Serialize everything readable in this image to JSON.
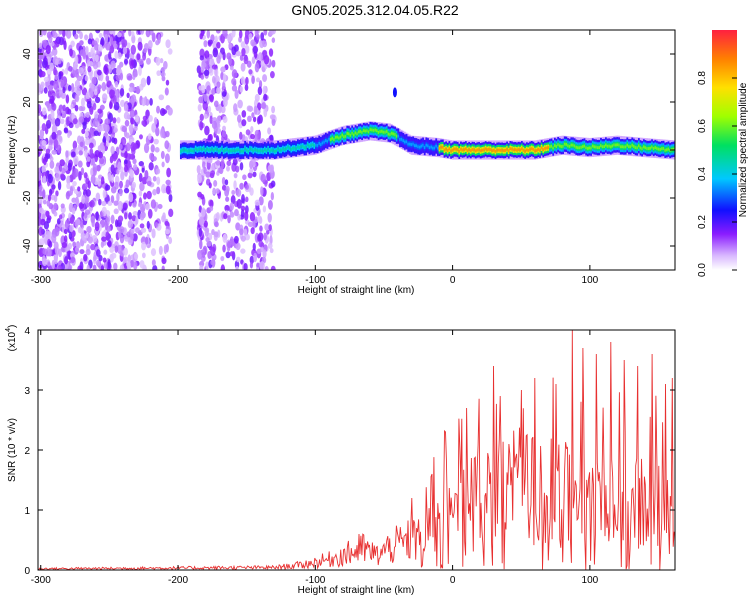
{
  "page": {
    "title": "GN05.2025.312.04.05.R22"
  },
  "chart_data": [
    {
      "type": "heatmap",
      "title": "GN05.2025.312.04.05.R22",
      "xlabel": "Height of straight line (km)",
      "ylabel": "Frequency (Hz)",
      "xlim": [
        -302,
        162
      ],
      "ylim": [
        -50,
        50
      ],
      "xticks": [
        -300,
        -200,
        -100,
        0,
        100
      ],
      "yticks": [
        -40,
        -20,
        0,
        20,
        40
      ],
      "colorbar": {
        "label": "Normalized spectral amplitude",
        "range": [
          0,
          1
        ],
        "ticks": [
          "0.0",
          "0.2",
          "0.4",
          "0.6",
          "0.8"
        ]
      },
      "ridge_centerline": {
        "x": [
          -200,
          -150,
          -130,
          -100,
          -80,
          -60,
          -45,
          -30,
          -10,
          0,
          20,
          40,
          60,
          80,
          100,
          120,
          140,
          162
        ],
        "y": [
          0,
          0,
          0,
          2,
          6,
          8,
          7,
          2,
          1,
          0,
          0,
          0,
          0,
          2,
          1,
          2,
          1,
          0
        ]
      },
      "annotations": [
        {
          "x": -42,
          "y": 24,
          "text": ""
        }
      ]
    },
    {
      "type": "line",
      "xlabel": "Height of straight line (km)",
      "ylabel": "SNR (10 * v/v)",
      "yscale_label": "(x10",
      "yscale_exp": "4",
      "xlim": [
        -302,
        162
      ],
      "ylim": [
        0,
        40000
      ],
      "xticks": [
        -300,
        -200,
        -100,
        0,
        100
      ],
      "yticks": [
        0,
        1,
        2,
        3,
        4
      ],
      "series": [
        {
          "name": "SNR",
          "color": "#e83030",
          "envelope_x": [
            -302,
            -130,
            -110,
            -90,
            -75,
            -65,
            -55,
            -45,
            -30,
            -20,
            -10,
            0,
            10,
            20,
            30,
            40,
            50,
            60,
            70,
            80,
            90,
            100,
            110,
            120,
            130,
            140,
            150,
            162
          ],
          "envelope_y": [
            300,
            600,
            1200,
            2500,
            4000,
            5000,
            3500,
            5500,
            7000,
            9000,
            11000,
            13000,
            15000,
            17000,
            18500,
            19000,
            19000,
            18500,
            18000,
            17500,
            17000,
            16500,
            16000,
            15500,
            15000,
            15000,
            14500,
            14000
          ],
          "peak_x": [
            -68,
            -30,
            -15,
            -5,
            10,
            30,
            35,
            50,
            60,
            75,
            87,
            95,
            105,
            115,
            125,
            135,
            145,
            155,
            160
          ],
          "peak_y": [
            6000,
            12000,
            16000,
            23000,
            27000,
            34000,
            29000,
            30000,
            32000,
            31000,
            40000,
            37000,
            36000,
            38000,
            35000,
            34000,
            36000,
            31000,
            32000
          ]
        }
      ]
    }
  ]
}
